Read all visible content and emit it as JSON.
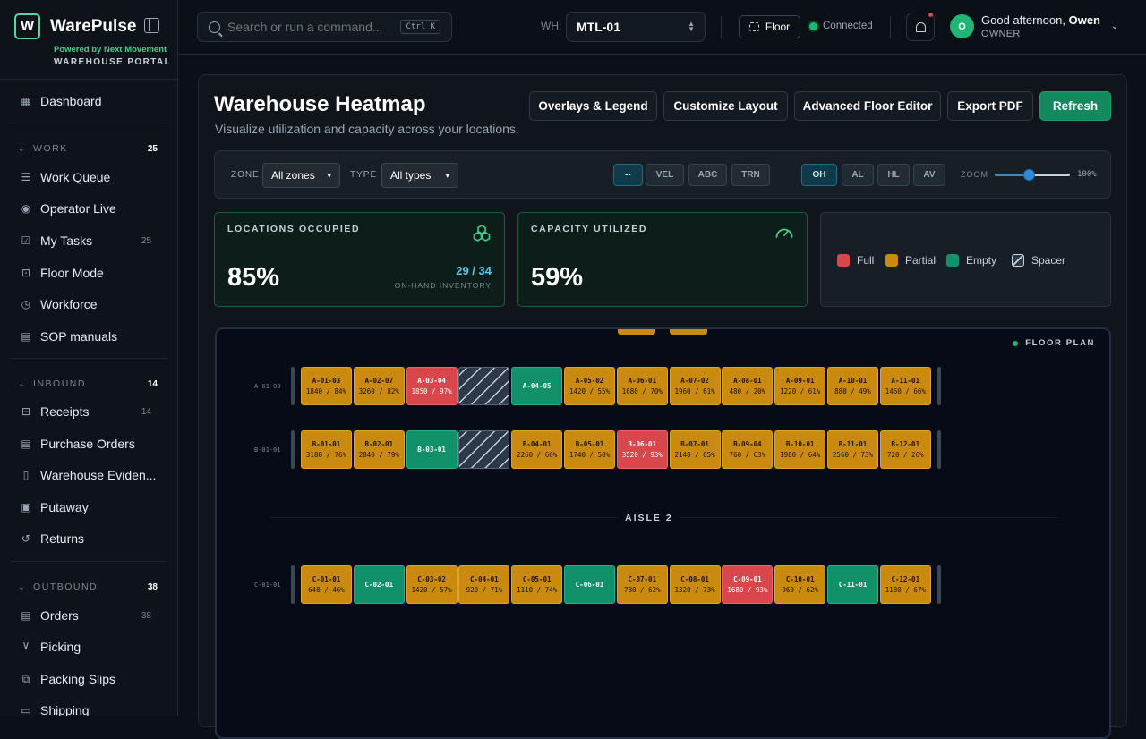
{
  "app": {
    "name": "WarePulse",
    "logo_letter": "W",
    "powered_by": "Powered by Next Movement",
    "portal": "WAREHOUSE PORTAL"
  },
  "sidebar": {
    "dashboard": "Dashboard",
    "sections": [
      {
        "title": "WORK",
        "count": "25",
        "items": [
          {
            "label": "Work Queue",
            "icon": "list-icon",
            "count": ""
          },
          {
            "label": "Operator Live",
            "icon": "broadcast-icon",
            "count": ""
          },
          {
            "label": "My Tasks",
            "icon": "checkbox-icon",
            "count": "25"
          },
          {
            "label": "Floor Mode",
            "icon": "scan-icon",
            "count": ""
          },
          {
            "label": "Workforce",
            "icon": "clock-icon",
            "count": ""
          },
          {
            "label": "SOP manuals",
            "icon": "document-icon",
            "count": ""
          }
        ]
      },
      {
        "title": "INBOUND",
        "count": "14",
        "items": [
          {
            "label": "Receipts",
            "icon": "inbox-icon",
            "count": "14"
          },
          {
            "label": "Purchase Orders",
            "icon": "document-icon",
            "count": ""
          },
          {
            "label": "Warehouse Eviden...",
            "icon": "file-icon",
            "count": ""
          },
          {
            "label": "Putaway",
            "icon": "clipboard-icon",
            "count": ""
          },
          {
            "label": "Returns",
            "icon": "return-icon",
            "count": ""
          }
        ]
      },
      {
        "title": "OUTBOUND",
        "count": "38",
        "items": [
          {
            "label": "Orders",
            "icon": "document-icon",
            "count": "38"
          },
          {
            "label": "Picking",
            "icon": "cart-icon",
            "count": ""
          },
          {
            "label": "Packing Slips",
            "icon": "copy-icon",
            "count": ""
          },
          {
            "label": "Shipping",
            "icon": "truck-icon",
            "count": ""
          }
        ]
      }
    ]
  },
  "topbar": {
    "search_placeholder": "Search or run a command...",
    "shortcut": "Ctrl K",
    "wh_label": "WH:",
    "wh_value": "MTL-01",
    "floor_button": "Floor",
    "status": "Connected",
    "greeting": "Good afternoon,",
    "user_name": "Owen",
    "role": "OWNER",
    "avatar_initial": "O"
  },
  "page": {
    "title": "Warehouse Heatmap",
    "subtitle": "Visualize utilization and capacity across your locations.",
    "buttons": [
      "Overlays & Legend",
      "Customize Layout",
      "Advanced Floor Editor",
      "Export PDF",
      "Refresh"
    ]
  },
  "filters": {
    "zone_label": "ZONE",
    "zone_value": "All zones",
    "type_label": "TYPE",
    "type_value": "All types",
    "view_chips": [
      "--",
      "VEL",
      "ABC",
      "TRN"
    ],
    "metric_chips": [
      "OH",
      "AL",
      "HL",
      "AV"
    ],
    "active_view": "--",
    "active_metric": "OH",
    "zoom_label": "ZOOM",
    "zoom_value": "100%",
    "zoom_level": 0.45
  },
  "stats": {
    "locations": {
      "label": "LOCATIONS OCCUPIED",
      "value": "85%",
      "fraction": "29 / 34",
      "note": "ON-HAND INVENTORY"
    },
    "capacity": {
      "label": "CAPACITY UTILIZED",
      "value": "59%"
    }
  },
  "legend": [
    {
      "label": "Full",
      "color": "#d9464b"
    },
    {
      "label": "Partial",
      "color": "#c98a0f"
    },
    {
      "label": "Empty",
      "color": "#119069"
    },
    {
      "label": "Spacer",
      "color": "spacer"
    }
  ],
  "floor": {
    "label": "FLOOR PLAN",
    "aisle": "AISLE 2",
    "rows": [
      {
        "label": "A-01-03",
        "cells": [
          {
            "id": "A-01-03",
            "val": "1840 / 84%",
            "status": "partial"
          },
          {
            "id": "A-02-07",
            "val": "3260 / 82%",
            "status": "partial"
          },
          {
            "id": "A-03-04",
            "val": "1850 / 97%",
            "status": "full"
          },
          {
            "id": "",
            "val": "",
            "status": "spacer"
          },
          {
            "id": "A-04-05",
            "val": "",
            "status": "empty"
          },
          {
            "id": "A-05-02",
            "val": "1420 / 55%",
            "status": "partial"
          },
          {
            "id": "A-06-01",
            "val": "1680 / 70%",
            "status": "partial"
          },
          {
            "id": "A-07-02",
            "val": "1960 / 61%",
            "status": "partial"
          },
          {
            "id": "A-08-01",
            "val": "480 / 20%",
            "status": "partial"
          },
          {
            "id": "A-09-01",
            "val": "1220 / 61%",
            "status": "partial"
          },
          {
            "id": "A-10-01",
            "val": "880 / 49%",
            "status": "partial"
          },
          {
            "id": "A-11-01",
            "val": "1460 / 66%",
            "status": "partial"
          }
        ]
      },
      {
        "label": "B-01-01",
        "cells": [
          {
            "id": "B-01-01",
            "val": "3180 / 76%",
            "status": "partial"
          },
          {
            "id": "B-02-01",
            "val": "2840 / 79%",
            "status": "partial"
          },
          {
            "id": "B-03-01",
            "val": "",
            "status": "empty"
          },
          {
            "id": "",
            "val": "",
            "status": "spacer"
          },
          {
            "id": "B-04-01",
            "val": "2260 / 66%",
            "status": "partial"
          },
          {
            "id": "B-05-01",
            "val": "1740 / 58%",
            "status": "partial"
          },
          {
            "id": "B-06-01",
            "val": "3520 / 93%",
            "status": "full"
          },
          {
            "id": "B-07-01",
            "val": "2140 / 65%",
            "status": "partial"
          },
          {
            "id": "B-09-04",
            "val": "760 / 63%",
            "status": "partial"
          },
          {
            "id": "B-10-01",
            "val": "1980 / 64%",
            "status": "partial"
          },
          {
            "id": "B-11-01",
            "val": "2560 / 73%",
            "status": "partial"
          },
          {
            "id": "B-12-01",
            "val": "720 / 26%",
            "status": "partial"
          }
        ]
      },
      {
        "label": "C-01-01",
        "cells": [
          {
            "id": "C-01-01",
            "val": "640 / 46%",
            "status": "partial"
          },
          {
            "id": "C-02-01",
            "val": "",
            "status": "empty"
          },
          {
            "id": "C-03-02",
            "val": "1420 / 57%",
            "status": "partial"
          },
          {
            "id": "C-04-01",
            "val": "920 / 71%",
            "status": "partial"
          },
          {
            "id": "C-05-01",
            "val": "1110 / 74%",
            "status": "partial"
          },
          {
            "id": "C-06-01",
            "val": "",
            "status": "empty"
          },
          {
            "id": "C-07-01",
            "val": "780 / 62%",
            "status": "partial"
          },
          {
            "id": "C-08-01",
            "val": "1320 / 73%",
            "status": "partial"
          },
          {
            "id": "C-09-01",
            "val": "1680 / 93%",
            "status": "full"
          },
          {
            "id": "C-10-01",
            "val": "960 / 62%",
            "status": "partial"
          },
          {
            "id": "C-11-01",
            "val": "",
            "status": "empty"
          },
          {
            "id": "C-12-01",
            "val": "1180 / 67%",
            "status": "partial"
          }
        ]
      }
    ]
  }
}
